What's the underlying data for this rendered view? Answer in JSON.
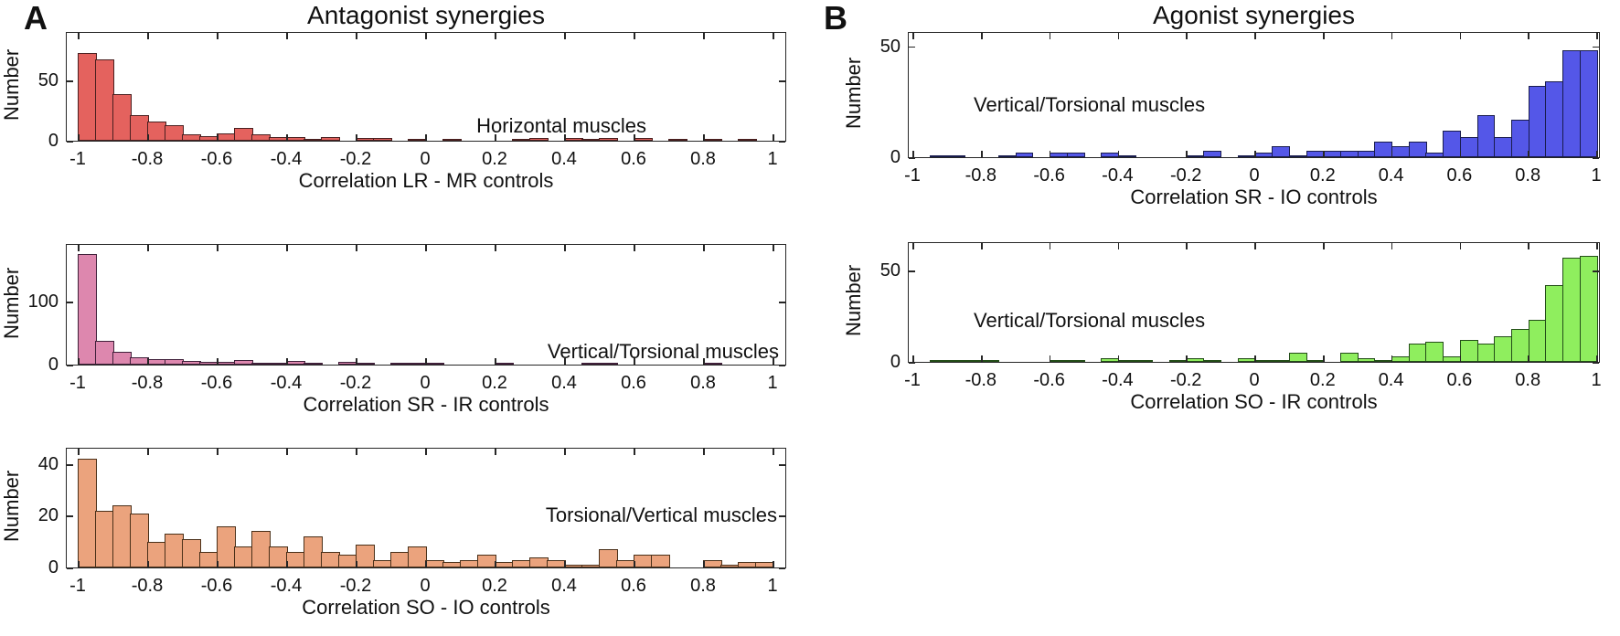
{
  "panel_a": {
    "label": "A",
    "title": "Antagonist synergies"
  },
  "panel_b": {
    "label": "B",
    "title": "Agonist synergies"
  },
  "chart_data": [
    {
      "type": "bar",
      "subtype": "histogram",
      "panel": "A",
      "annotation": "Horizontal muscles",
      "xlabel": "Correlation LR - MR controls",
      "ylabel": "Number",
      "bar_color": "#e4625e",
      "edge_color": "#4a2020",
      "xlim": [
        -1,
        1
      ],
      "ylim": [
        0,
        90
      ],
      "bin_start": -1,
      "bin_width": 0.05,
      "values": [
        73,
        68,
        39,
        21,
        16,
        13,
        5,
        4,
        6,
        11,
        5,
        3,
        3,
        1,
        3,
        0,
        2,
        2,
        0,
        1,
        0,
        1,
        0,
        0,
        0,
        1,
        2,
        0,
        2,
        1,
        2,
        0,
        2,
        0,
        1,
        0,
        1,
        0,
        1,
        0
      ],
      "yticks": [
        {
          "v": 0,
          "label": "0"
        },
        {
          "v": 50,
          "label": "50"
        }
      ],
      "xticks": {
        "values": [
          -1,
          -0.8,
          -0.6,
          -0.4,
          -0.2,
          0,
          0.2,
          0.4,
          0.6,
          0.8,
          1
        ],
        "labels": [
          "-1",
          "-0.8",
          "-0.6",
          "-0.4",
          "-0.2",
          "0",
          "0.2",
          "0.4",
          "0.6",
          "0.8",
          "1"
        ]
      },
      "grid": false,
      "legend": "none"
    },
    {
      "type": "bar",
      "subtype": "histogram",
      "panel": "A",
      "annotation": "Vertical/Torsional muscles",
      "xlabel": "Correlation SR - IR controls",
      "ylabel": "Number",
      "bar_color": "#dd87ae",
      "edge_color": "#40203a",
      "xlim": [
        -1,
        1
      ],
      "ylim": [
        0,
        190
      ],
      "bin_start": -1,
      "bin_width": 0.05,
      "values": [
        175,
        37,
        20,
        12,
        8,
        8,
        6,
        5,
        4,
        7,
        2,
        1,
        6,
        1,
        0,
        4,
        1,
        0,
        1,
        1,
        1,
        0,
        0,
        0,
        1,
        0,
        0,
        0,
        0,
        2,
        1,
        0,
        0,
        0,
        0,
        0,
        2,
        0,
        0,
        0
      ],
      "yticks": [
        {
          "v": 0,
          "label": "0"
        },
        {
          "v": 100,
          "label": "100"
        }
      ],
      "xticks": {
        "values": [
          -1,
          -0.8,
          -0.6,
          -0.4,
          -0.2,
          0,
          0.2,
          0.4,
          0.6,
          0.8,
          1
        ],
        "labels": [
          "-1",
          "-0.8",
          "-0.6",
          "-0.4",
          "-0.2",
          "0",
          "0.2",
          "0.4",
          "0.6",
          "0.8",
          "1"
        ]
      },
      "grid": false,
      "legend": "none"
    },
    {
      "type": "bar",
      "subtype": "histogram",
      "panel": "A",
      "annotation": "Torsional/Vertical muscles",
      "xlabel": "Correlation SO - IO controls",
      "ylabel": "Number",
      "bar_color": "#eba37d",
      "edge_color": "#4a3019",
      "xlim": [
        -1,
        1
      ],
      "ylim": [
        0,
        46
      ],
      "bin_start": -1,
      "bin_width": 0.05,
      "values": [
        42,
        22,
        24,
        21,
        10,
        13,
        11,
        6,
        16,
        8,
        14,
        8,
        6,
        12,
        6,
        5,
        9,
        3,
        6,
        8,
        3,
        2,
        3,
        5,
        2,
        3,
        4,
        3,
        1,
        1,
        7,
        3,
        5,
        5,
        0,
        0,
        3,
        1,
        2,
        2
      ],
      "yticks": [
        {
          "v": 0,
          "label": "0"
        },
        {
          "v": 20,
          "label": "20"
        },
        {
          "v": 40,
          "label": "40"
        }
      ],
      "xticks": {
        "values": [
          -1,
          -0.8,
          -0.6,
          -0.4,
          -0.2,
          0,
          0.2,
          0.4,
          0.6,
          0.8,
          1
        ],
        "labels": [
          "-1",
          "-0.8",
          "-0.6",
          "-0.4",
          "-0.2",
          "0",
          "0.2",
          "0.4",
          "0.6",
          "0.8",
          "1"
        ]
      },
      "grid": false,
      "legend": "none"
    },
    {
      "type": "bar",
      "subtype": "histogram",
      "panel": "B",
      "annotation": "Vertical/Torsional muscles",
      "xlabel": "Correlation SR - IO controls",
      "ylabel": "Number",
      "bar_color": "#5457e8",
      "edge_color": "#191c4d",
      "xlim": [
        -1,
        1
      ],
      "ylim": [
        0,
        56
      ],
      "bin_start": -1,
      "bin_width": 0.05,
      "values": [
        0,
        1,
        1,
        0,
        0,
        1,
        2,
        0,
        2,
        2,
        0,
        2,
        1,
        0,
        0,
        0,
        1,
        3,
        0,
        1,
        2,
        5,
        1,
        3,
        3,
        3,
        3,
        7,
        5,
        7,
        2,
        12,
        9,
        19,
        9,
        17,
        32,
        34,
        48,
        48
      ],
      "yticks": [
        {
          "v": 0,
          "label": "0"
        },
        {
          "v": 50,
          "label": "50"
        }
      ],
      "xticks": {
        "values": [
          -1,
          -0.8,
          -0.6,
          -0.4,
          -0.2,
          0,
          0.2,
          0.4,
          0.6,
          0.8,
          1
        ],
        "labels": [
          "-1",
          "-0.8",
          "-0.6",
          "-0.4",
          "-0.2",
          "0",
          "0.2",
          "0.4",
          "0.6",
          "0.8",
          "1"
        ]
      },
      "grid": false,
      "legend": "none"
    },
    {
      "type": "bar",
      "subtype": "histogram",
      "panel": "B",
      "annotation": "Vertical/Torsional muscles",
      "xlabel": "Correlation SO - IR controls",
      "ylabel": "Number",
      "bar_color": "#8fee5e",
      "edge_color": "#234d18",
      "xlim": [
        -1,
        1
      ],
      "ylim": [
        0,
        65
      ],
      "bin_start": -1,
      "bin_width": 0.05,
      "values": [
        0,
        1,
        1,
        1,
        1,
        0,
        0,
        0,
        1,
        1,
        0,
        2,
        1,
        1,
        0,
        1,
        2,
        1,
        0,
        2,
        1,
        1,
        5,
        1,
        0,
        5,
        2,
        1,
        3,
        10,
        11,
        3,
        12,
        10,
        14,
        18,
        23,
        42,
        57,
        58
      ],
      "yticks": [
        {
          "v": 0,
          "label": "0"
        },
        {
          "v": 50,
          "label": "50"
        }
      ],
      "xticks": {
        "values": [
          -1,
          -0.8,
          -0.6,
          -0.4,
          -0.2,
          0,
          0.2,
          0.4,
          0.6,
          0.8,
          1
        ],
        "labels": [
          "-1",
          "-0.8",
          "-0.6",
          "-0.4",
          "-0.2",
          "0",
          "0.2",
          "0.4",
          "0.6",
          "0.8",
          "1"
        ]
      },
      "grid": false,
      "legend": "none"
    }
  ]
}
